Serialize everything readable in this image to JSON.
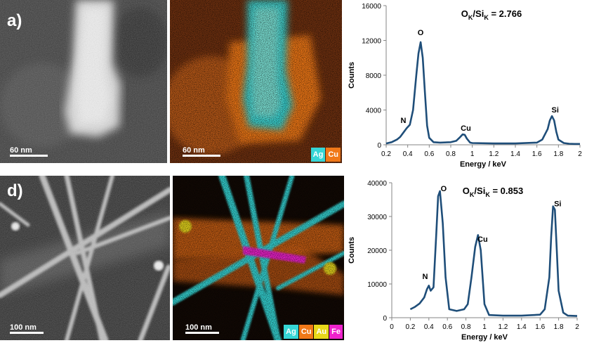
{
  "panels": {
    "a": {
      "label": "a)",
      "stem_scale": "60 nm",
      "map_scale": "60 nm",
      "legend": [
        {
          "name": "Ag",
          "color": "#36d6d6"
        },
        {
          "name": "Cu",
          "color": "#f07818"
        }
      ]
    },
    "d": {
      "label": "d)",
      "stem_scale": "100 nm",
      "map_scale": "100 nm",
      "legend": [
        {
          "name": "Ag",
          "color": "#36d6d6"
        },
        {
          "name": "Cu",
          "color": "#f07818"
        },
        {
          "name": "Au",
          "color": "#e8d81a"
        },
        {
          "name": "Fe",
          "color": "#ee22cc"
        }
      ]
    }
  },
  "chart_data": [
    {
      "type": "line",
      "title": "O_K/Si_K = 2.766",
      "title_main1": "O",
      "title_sub1": "K",
      "title_mid": "/Si",
      "title_sub2": "K",
      "title_value": " = 2.766",
      "xlabel": "Energy / keV",
      "ylabel": "Counts",
      "xlim": [
        0.2,
        2
      ],
      "ylim": [
        0,
        16000
      ],
      "xticks": [
        "0.2",
        "0.4",
        "0.6",
        "0.8",
        "1",
        "1.2",
        "1.4",
        "1.6",
        "1.8",
        "2"
      ],
      "yticks": [
        "0",
        "4000",
        "8000",
        "12000",
        "16000"
      ],
      "series": [
        {
          "name": "EDX spectrum",
          "color": "#1f4e79",
          "x": [
            0.2,
            0.25,
            0.3,
            0.33,
            0.36,
            0.39,
            0.42,
            0.45,
            0.48,
            0.5,
            0.52,
            0.54,
            0.56,
            0.58,
            0.6,
            0.64,
            0.7,
            0.8,
            0.85,
            0.88,
            0.91,
            0.93,
            0.95,
            0.98,
            1.0,
            1.2,
            1.4,
            1.6,
            1.65,
            1.7,
            1.72,
            1.74,
            1.76,
            1.78,
            1.8,
            1.85,
            1.9,
            1.95,
            2.0
          ],
          "y": [
            150,
            300,
            600,
            900,
            1400,
            1900,
            2300,
            4000,
            8000,
            10500,
            11800,
            10000,
            6000,
            2200,
            800,
            300,
            250,
            300,
            450,
            800,
            1200,
            1150,
            700,
            250,
            200,
            150,
            150,
            250,
            600,
            1800,
            2800,
            3300,
            2800,
            1500,
            600,
            200,
            120,
            100,
            100
          ]
        }
      ],
      "annotations": [
        {
          "text": "O",
          "x": 0.52,
          "y": 12600
        },
        {
          "text": "N",
          "x": 0.36,
          "y": 2500
        },
        {
          "text": "Cu",
          "x": 0.94,
          "y": 1600
        },
        {
          "text": "Si",
          "x": 1.77,
          "y": 3700
        }
      ]
    },
    {
      "type": "line",
      "title": "O_K/Si_K = 0.853",
      "title_main1": "O",
      "title_sub1": "K",
      "title_mid": "/Si",
      "title_sub2": "K",
      "title_value": " = 0.853",
      "xlabel": "Energy / keV",
      "ylabel": "Counts",
      "xlim": [
        0,
        2
      ],
      "ylim": [
        0,
        40000
      ],
      "xticks": [
        "0",
        "0.2",
        "0.4",
        "0.6",
        "0.8",
        "1",
        "1.2",
        "1.4",
        "1.6",
        "1.8",
        "2"
      ],
      "yticks": [
        "0",
        "10000",
        "20000",
        "30000",
        "40000"
      ],
      "series": [
        {
          "name": "EDX spectrum",
          "color": "#1f4e79",
          "x": [
            0.2,
            0.25,
            0.3,
            0.35,
            0.38,
            0.4,
            0.42,
            0.45,
            0.48,
            0.5,
            0.52,
            0.55,
            0.58,
            0.62,
            0.7,
            0.78,
            0.82,
            0.86,
            0.9,
            0.93,
            0.96,
            1.0,
            1.05,
            1.2,
            1.4,
            1.6,
            1.65,
            1.7,
            1.72,
            1.74,
            1.76,
            1.78,
            1.8,
            1.85,
            1.9,
            2.0
          ],
          "y": [
            2500,
            3200,
            4200,
            6000,
            8500,
            9500,
            8000,
            9000,
            25000,
            36000,
            37500,
            28000,
            12000,
            2500,
            2000,
            2500,
            4000,
            12000,
            21000,
            24500,
            20000,
            4000,
            800,
            600,
            600,
            900,
            2500,
            12000,
            24000,
            33000,
            32000,
            20000,
            8000,
            1500,
            600,
            500
          ]
        }
      ],
      "annotations": [
        {
          "text": "O",
          "x": 0.56,
          "y": 37500
        },
        {
          "text": "N",
          "x": 0.36,
          "y": 11500
        },
        {
          "text": "Cu",
          "x": 0.98,
          "y": 22500
        },
        {
          "text": "Si",
          "x": 1.79,
          "y": 33000
        }
      ]
    }
  ]
}
